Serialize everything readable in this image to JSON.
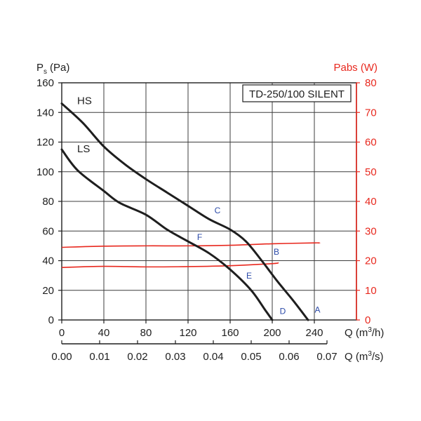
{
  "chart_data": {
    "type": "line",
    "model_label": "TD-250/100 SILENT",
    "y_left": {
      "label": "P",
      "label_sub": "s",
      "label_unit": "(Pa)",
      "ylim": [
        0,
        160
      ],
      "ticks": [
        0,
        20,
        40,
        60,
        80,
        100,
        120,
        140,
        160
      ],
      "color": "#000000"
    },
    "y_right": {
      "label": "Pabs (W)",
      "ylim": [
        0,
        80
      ],
      "ticks": [
        0,
        10,
        20,
        30,
        40,
        50,
        60,
        70,
        80
      ],
      "color": "#e8281e"
    },
    "x_primary": {
      "label_prefix": "Q (m",
      "label_sup": "3",
      "label_suffix": "/h)",
      "xlim": [
        0,
        280
      ],
      "ticks": [
        0,
        40,
        80,
        120,
        160,
        200,
        240
      ]
    },
    "x_secondary": {
      "label_prefix": "Q (m",
      "label_sup": "3",
      "label_suffix": "/s)",
      "ticks": [
        {
          "value": 0.0,
          "label": "0.00"
        },
        {
          "value": 0.01,
          "label": "0.01"
        },
        {
          "value": 0.02,
          "label": "0.02"
        },
        {
          "value": 0.03,
          "label": "0.03"
        },
        {
          "value": 0.04,
          "label": "0.04"
        },
        {
          "value": 0.05,
          "label": "0.05"
        },
        {
          "value": 0.06,
          "label": "0.06"
        },
        {
          "value": 0.07,
          "label": "0.07"
        }
      ]
    },
    "grid": true,
    "pressure_series": [
      {
        "name": "HS",
        "axis": "left",
        "color": "#1e1e1e",
        "points": [
          [
            0,
            146
          ],
          [
            20,
            133
          ],
          [
            40,
            117
          ],
          [
            60,
            105
          ],
          [
            80,
            95
          ],
          [
            100,
            86
          ],
          [
            120,
            77
          ],
          [
            140,
            68
          ],
          [
            160,
            61
          ],
          [
            175,
            53
          ],
          [
            190,
            40
          ],
          [
            205,
            26
          ],
          [
            220,
            13
          ],
          [
            234,
            0
          ]
        ]
      },
      {
        "name": "LS",
        "axis": "left",
        "color": "#1e1e1e",
        "points": [
          [
            0,
            115
          ],
          [
            15,
            101
          ],
          [
            40,
            87
          ],
          [
            55,
            79
          ],
          [
            80,
            71
          ],
          [
            100,
            61
          ],
          [
            120,
            53
          ],
          [
            140,
            45
          ],
          [
            160,
            34
          ],
          [
            180,
            20
          ],
          [
            193,
            7
          ],
          [
            200,
            0
          ]
        ]
      }
    ],
    "power_series": [
      {
        "axis": "right",
        "color": "#e8281e",
        "points": [
          [
            0,
            24.5
          ],
          [
            40,
            24.9
          ],
          [
            80,
            25.0
          ],
          [
            120,
            25.0
          ],
          [
            160,
            25.2
          ],
          [
            200,
            25.7
          ],
          [
            240,
            26.0
          ],
          [
            245,
            25.9
          ]
        ]
      },
      {
        "axis": "right",
        "color": "#e8281e",
        "points": [
          [
            0,
            17.7
          ],
          [
            40,
            18.1
          ],
          [
            80,
            17.9
          ],
          [
            120,
            18.0
          ],
          [
            160,
            18.3
          ],
          [
            200,
            19.0
          ],
          [
            206,
            19.3
          ]
        ]
      }
    ],
    "point_labels": [
      {
        "label": "A",
        "x": 243,
        "y": 5
      },
      {
        "label": "B",
        "x": 204,
        "y": 44
      },
      {
        "label": "C",
        "x": 148,
        "y": 72
      },
      {
        "label": "D",
        "x": 210,
        "y": 4
      },
      {
        "label": "E",
        "x": 178,
        "y": 28
      },
      {
        "label": "F",
        "x": 131,
        "y": 54
      }
    ],
    "point_label_color": "#2b4aa8"
  }
}
